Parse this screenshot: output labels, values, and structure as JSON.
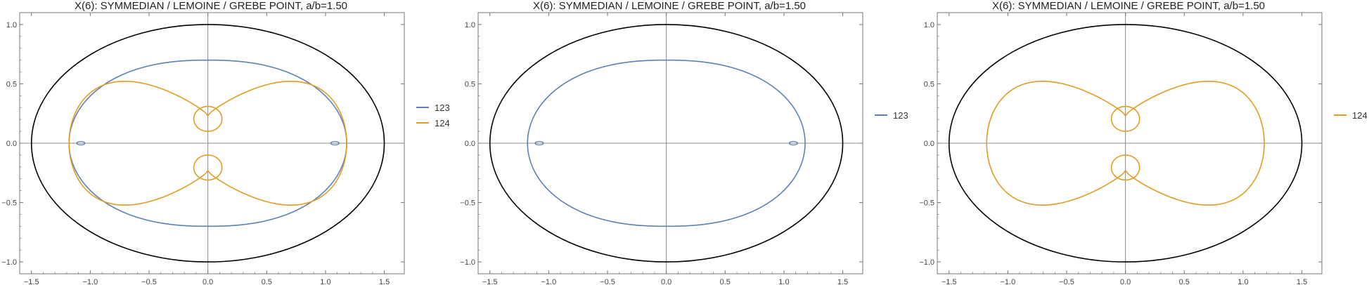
{
  "colors": {
    "ellipse": "#000000",
    "series_123": "#5e81b5",
    "series_124": "#e19c24",
    "axis": "#888888",
    "frame": "#777777"
  },
  "chart_data": [
    {
      "type": "line",
      "title": "X(6): SYMMEDIAN / LEMOINE / GREBE POINT, a/b=1.50",
      "xlim": [
        -1.6,
        1.67
      ],
      "ylim": [
        -1.1,
        1.1
      ],
      "xticks": [
        "-1.5",
        "-1.0",
        "-0.5",
        "0.0",
        "0.5",
        "1.0",
        "1.5"
      ],
      "yticks": [
        "1.0",
        "0.5",
        "0.0",
        "-0.5",
        "-1.0"
      ],
      "grid": false,
      "legend_position": "right",
      "ellipse": {
        "a": 1.5,
        "b": 1.0
      },
      "series": [
        {
          "name": "123",
          "curve": "oval",
          "rx": 1.18,
          "ry": 0.7,
          "loop_x": 1.08,
          "loop_w": 0.035,
          "loop_h": 0.015
        },
        {
          "name": "124",
          "curve": "lemniscate",
          "d": 0.23,
          "lobe_w": 1.0,
          "lobe_h": 0.455,
          "inner_loop_h": 0.12
        }
      ]
    },
    {
      "type": "line",
      "title": "X(6): SYMMEDIAN / LEMOINE / GREBE POINT, a/b=1.50",
      "xlim": [
        -1.6,
        1.67
      ],
      "ylim": [
        -1.1,
        1.1
      ],
      "xticks": [
        "-1.5",
        "-1.0",
        "-0.5",
        "0.0",
        "0.5",
        "1.0",
        "1.5"
      ],
      "yticks": [
        "1.0",
        "0.5",
        "0.0",
        "-0.5",
        "-1.0"
      ],
      "grid": false,
      "legend_position": "right",
      "ellipse": {
        "a": 1.5,
        "b": 1.0
      },
      "series": [
        {
          "name": "123",
          "curve": "oval",
          "rx": 1.18,
          "ry": 0.7,
          "loop_x": 1.08,
          "loop_w": 0.035,
          "loop_h": 0.015
        }
      ]
    },
    {
      "type": "line",
      "title": "X(6): SYMMEDIAN / LEMOINE / GREBE POINT, a/b=1.50",
      "xlim": [
        -1.6,
        1.67
      ],
      "ylim": [
        -1.1,
        1.1
      ],
      "xticks": [
        "-1.5",
        "-1.0",
        "-0.5",
        "0.0",
        "0.5",
        "1.0",
        "1.5"
      ],
      "yticks": [
        "1.0",
        "0.5",
        "0.0",
        "-0.5",
        "-1.0"
      ],
      "grid": false,
      "legend_position": "right",
      "ellipse": {
        "a": 1.5,
        "b": 1.0
      },
      "series": [
        {
          "name": "124",
          "curve": "lemniscate",
          "d": 0.23,
          "lobe_w": 1.0,
          "lobe_h": 0.455,
          "inner_loop_h": 0.12
        }
      ]
    }
  ]
}
